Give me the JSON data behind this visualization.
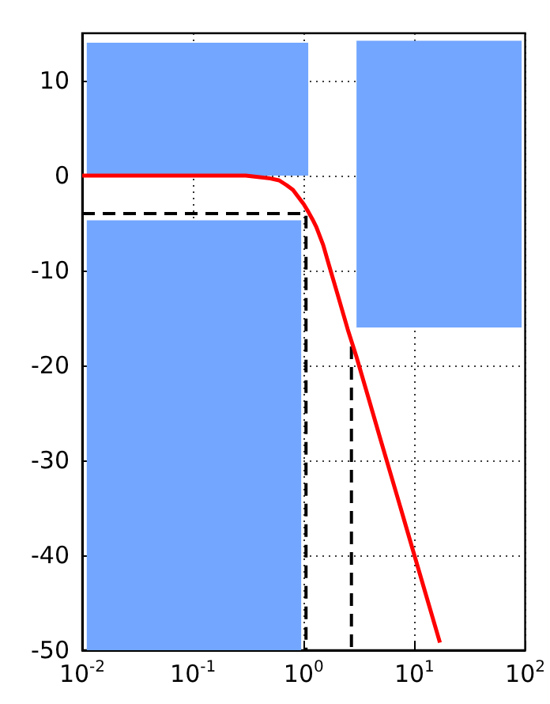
{
  "chart_data": {
    "type": "line",
    "xlim": [
      0.01,
      100
    ],
    "ylim": [
      -50,
      15
    ],
    "xticks": [
      {
        "value": 0.01,
        "label": "10$^{-2}$"
      },
      {
        "value": 0.1,
        "label": "10$^{-1}$"
      },
      {
        "value": 1,
        "label": "10$^{0}$"
      },
      {
        "value": 10,
        "label": "10$^{1}$"
      },
      {
        "value": 100,
        "label": "10$^{2}$"
      }
    ],
    "yticks": [
      -50,
      -40,
      -30,
      -20,
      -10,
      0,
      10
    ],
    "log": "x",
    "grid": true,
    "marker": "none",
    "series": [
      {
        "type": "area",
        "color": "#72a6ff",
        "x": [
          0.011,
          0.011,
          1.1,
          1.1
        ],
        "values": [
          0,
          14,
          14,
          0
        ]
      },
      {
        "type": "area",
        "color": "#72a6ff",
        "x": [
          0.011,
          0.011,
          0.95,
          0.95
        ],
        "values": [
          -50,
          -4.7,
          -4.7,
          -50
        ]
      },
      {
        "type": "area",
        "color": "#72a6ff",
        "x": [
          3,
          3,
          93,
          93
        ],
        "values": [
          -16,
          14.2,
          14.2,
          -16
        ]
      },
      {
        "color": "#000000",
        "line_style": "dashed",
        "x": [
          0.01,
          1.05,
          1.05
        ],
        "values": [
          -4,
          -4,
          -50
        ]
      },
      {
        "color": "#000000",
        "line_style": "dashed",
        "x": [
          2.7,
          2.7
        ],
        "values": [
          -18,
          -50
        ]
      },
      {
        "color": "#ff0000",
        "line_style": "solid",
        "x": [
          0.01,
          0.1,
          0.3,
          0.5,
          0.6,
          0.7,
          0.8,
          0.9,
          1,
          1.1,
          1.2,
          1.3,
          1.5,
          1.7,
          2,
          2.5,
          3,
          4,
          5,
          7,
          10,
          17
        ],
        "values": [
          0,
          0,
          0,
          -0.3,
          -0.5,
          -1,
          -1.5,
          -2.3,
          -3,
          -3.8,
          -4.6,
          -5.4,
          -7.3,
          -9.5,
          -12.3,
          -16.2,
          -19.1,
          -24.1,
          -28,
          -33.8,
          -40,
          -49.2
        ]
      }
    ]
  }
}
